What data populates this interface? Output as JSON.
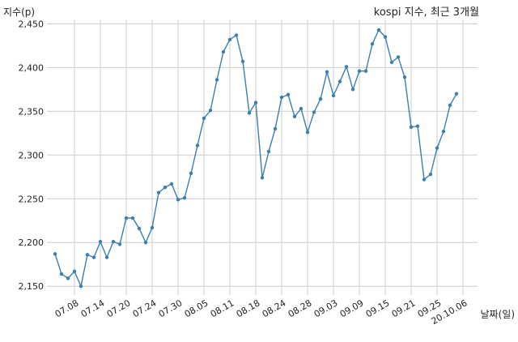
{
  "chart_data": {
    "type": "line",
    "title": "kospi 지수, 최근 3개월",
    "xlabel": "날짜(일)",
    "ylabel": "지수(p)",
    "ylim": [
      2140,
      2455
    ],
    "yticks": [
      2150,
      2200,
      2250,
      2300,
      2350,
      2400,
      2450
    ],
    "ytick_labels": [
      "2,150",
      "2,200",
      "2,250",
      "2,300",
      "2,350",
      "2,400",
      "2,450"
    ],
    "grid": true,
    "line_color": "#3a7fb0",
    "x": [
      "07.06",
      "07.07",
      "07.08",
      "07.09",
      "07.10",
      "07.13",
      "07.14",
      "07.15",
      "07.16",
      "07.17",
      "07.20",
      "07.21",
      "07.22",
      "07.23",
      "07.24",
      "07.27",
      "07.28",
      "07.29",
      "07.30",
      "07.31",
      "08.03",
      "08.04",
      "08.05",
      "08.06",
      "08.07",
      "08.10",
      "08.11",
      "08.12",
      "08.13",
      "08.14",
      "08.18",
      "08.19",
      "08.20",
      "08.21",
      "08.24",
      "08.25",
      "08.26",
      "08.27",
      "08.28",
      "08.31",
      "09.01",
      "09.02",
      "09.03",
      "09.04",
      "09.07",
      "09.08",
      "09.09",
      "09.10",
      "09.11",
      "09.14",
      "09.15",
      "09.16",
      "09.17",
      "09.18",
      "09.21",
      "09.22",
      "09.23",
      "09.24",
      "09.25",
      "09.28",
      "09.29",
      "10.05",
      "10.06"
    ],
    "values": [
      2187,
      2164,
      2159,
      2167,
      2150,
      2186,
      2183,
      2201,
      2183,
      2201,
      2198,
      2228,
      2228,
      2216,
      2200,
      2217,
      2257,
      2263,
      2267,
      2249,
      2251,
      2279,
      2311,
      2342,
      2351,
      2386,
      2418,
      2432,
      2437,
      2407,
      2348,
      2360,
      2274,
      2304,
      2330,
      2366,
      2369,
      2344,
      2353,
      2326,
      2349,
      2364,
      2395,
      2368,
      2384,
      2401,
      2375,
      2396,
      2396,
      2427,
      2443,
      2435,
      2406,
      2412,
      2389,
      2332,
      2333,
      2272,
      2278,
      2308,
      2327,
      2357,
      2370
    ],
    "tick_positions": [
      3,
      7,
      11,
      15,
      19,
      23,
      27,
      31,
      35,
      39,
      43,
      47,
      51,
      55,
      59,
      63
    ],
    "tick_labels": [
      "07.08",
      "07.14",
      "07.20",
      "07.24",
      "07.30",
      "08.05",
      "08.11",
      "08.18",
      "08.24",
      "08.28",
      "09.03",
      "09.09",
      "09.15",
      "09.21",
      "09.25",
      "20.10.06"
    ]
  }
}
